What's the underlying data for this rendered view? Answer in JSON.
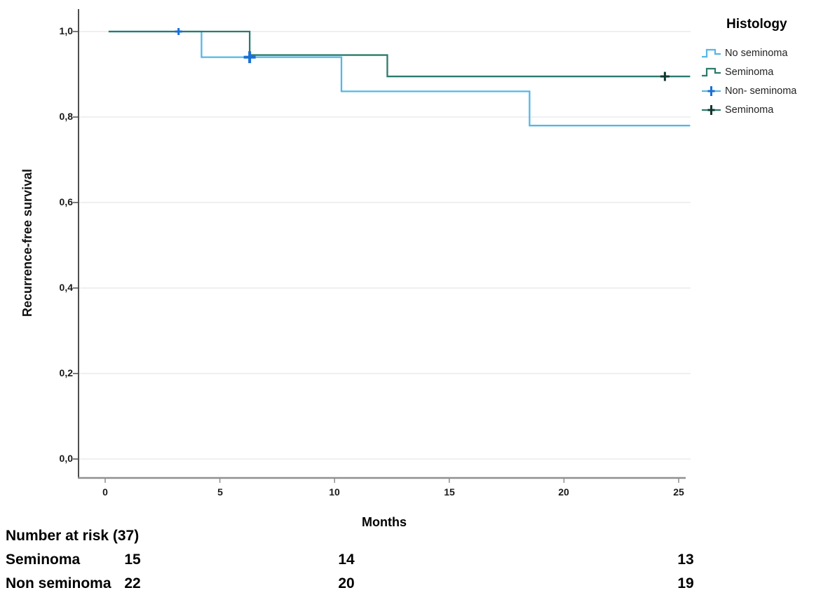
{
  "chart_data": {
    "type": "line",
    "subtype": "kaplan-meier-step",
    "title": "",
    "xlabel": "Months",
    "ylabel": "Recurrence-free survival",
    "xlim": [
      -1.2,
      25.5
    ],
    "ylim": [
      -0.045,
      1.05
    ],
    "xticks": [
      0,
      5,
      10,
      15,
      20,
      25
    ],
    "xtick_labels": [
      "0",
      "5",
      "10",
      "15",
      "20",
      "25"
    ],
    "ytick_values": [
      1.0,
      0.8,
      0.6,
      0.4,
      0.2,
      0.0
    ],
    "ytick_labels": [
      "1,0",
      "0,8",
      "0,6",
      "0,4",
      "0,2",
      "0,0"
    ],
    "grid": "horizontal",
    "colors": {
      "grid": "#e4e8e5",
      "y_axis": "#4d4d4d",
      "x_axis": "#8f8f8f",
      "no_seminoma_line": "#54b7e6",
      "no_seminoma_censor": "#1a6fd4",
      "seminoma_line": "#2c7b6c",
      "seminoma_censor": "#10382f"
    },
    "series": [
      {
        "name": "No seminoma",
        "color": "#54b7e6",
        "censor_color": "#1a6fd4",
        "steps": [
          {
            "t": 0.15,
            "s": 1.0
          },
          {
            "t": 4.2,
            "s": 0.94
          },
          {
            "t": 10.3,
            "s": 0.86
          },
          {
            "t": 18.5,
            "s": 0.78
          }
        ],
        "end": 25.5,
        "censored": [
          {
            "t": 3.2,
            "s": 1.0,
            "size": "small"
          },
          {
            "t": 6.3,
            "s": 0.94,
            "size": "large"
          }
        ]
      },
      {
        "name": "Seminoma",
        "color": "#2c7b6c",
        "censor_color": "#10382f",
        "steps": [
          {
            "t": 0.15,
            "s": 1.0
          },
          {
            "t": 6.3,
            "s": 0.945
          },
          {
            "t": 12.3,
            "s": 0.895
          }
        ],
        "end": 25.5,
        "censored": [
          {
            "t": 24.4,
            "s": 0.895,
            "size": "medium"
          }
        ]
      }
    ],
    "legend": {
      "title": "Histology",
      "position": "right-top",
      "entries": [
        {
          "label": "No seminoma",
          "glyph": "step",
          "color": "#54b7e6",
          "cross": "#54b7e6"
        },
        {
          "label": "Seminoma",
          "glyph": "step",
          "color": "#2c7b6c",
          "cross": "#2c7b6c"
        },
        {
          "label": "Non- seminoma",
          "glyph": "censor",
          "color": "#54b7e6",
          "cross": "#1a6fd4"
        },
        {
          "label": "Seminoma",
          "glyph": "censor",
          "color": "#2c7b6c",
          "cross": "#10382f"
        }
      ]
    },
    "number_at_risk": {
      "title": "Number at risk (37)",
      "rows": [
        {
          "label": "Seminoma",
          "values": [
            "15",
            "14",
            "13"
          ]
        },
        {
          "label": "Non seminoma",
          "values": [
            "22",
            "20",
            "19"
          ]
        }
      ]
    }
  }
}
